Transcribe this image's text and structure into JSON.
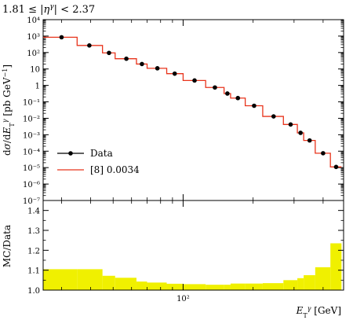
{
  "chart_data": {
    "type": "line",
    "header_label": "1.81 ≤ |η^γ| < 2.37",
    "main": {
      "ylabel": "dσ/dE_T^γ [pb GeV⁻¹]",
      "yscale": "log",
      "ylim": [
        1e-07,
        10000.0
      ],
      "y_ticks": [
        {
          "label": "10⁴",
          "v": 10000.0
        },
        {
          "label": "10³",
          "v": 1000.0
        },
        {
          "label": "10²",
          "v": 100.0
        },
        {
          "label": "10",
          "v": 10
        },
        {
          "label": "1",
          "v": 1
        },
        {
          "label": "10⁻¹",
          "v": 0.1
        },
        {
          "label": "10⁻²",
          "v": 0.01
        },
        {
          "label": "10⁻³",
          "v": 0.001
        },
        {
          "label": "10⁻⁴",
          "v": 0.0001
        },
        {
          "label": "10⁻⁵",
          "v": 1e-05
        },
        {
          "label": "10⁻⁶",
          "v": 1e-06
        },
        {
          "label": "10⁻⁷",
          "v": 1e-07
        }
      ],
      "legend_position": "bottom-left",
      "series": [
        {
          "name": "Data",
          "style": "points",
          "color": "#000000",
          "x": [
            30,
            39.5,
            48,
            57,
            66.5,
            77.5,
            92,
            112,
            137,
            155,
            172,
            202,
            245,
            290,
            320,
            350,
            400,
            455
          ],
          "y": [
            850,
            270,
            95,
            42,
            20,
            11,
            5.2,
            2.0,
            0.75,
            0.32,
            0.17,
            0.058,
            0.013,
            0.0042,
            0.0013,
            0.00045,
            7.5e-05,
            1.1e-05
          ]
        },
        {
          "name": "[8] 0.0034",
          "style": "step",
          "color": "#e8341c",
          "edges": [
            25,
            35,
            45,
            51,
            63,
            70,
            85,
            100,
            125,
            150,
            160,
            185,
            220,
            270,
            310,
            330,
            370,
            430,
            480
          ],
          "values": [
            850,
            270,
            95,
            42,
            20,
            11,
            5.2,
            2.0,
            0.75,
            0.32,
            0.17,
            0.058,
            0.013,
            0.0042,
            0.0013,
            0.00045,
            7.5e-05,
            1.1e-05
          ]
        }
      ]
    },
    "ratio": {
      "ylabel": "MC/Data",
      "ylim": [
        1.0,
        1.45
      ],
      "y_ticks": [
        {
          "label": "1.0",
          "v": 1.0
        },
        {
          "label": "1.1",
          "v": 1.1
        },
        {
          "label": "1.2",
          "v": 1.2
        },
        {
          "label": "1.3",
          "v": 1.3
        },
        {
          "label": "1.4",
          "v": 1.4
        }
      ],
      "band_color": "#f0f000",
      "band": {
        "edges": [
          25,
          35,
          45,
          51,
          63,
          70,
          85,
          100,
          125,
          150,
          160,
          185,
          220,
          270,
          310,
          330,
          370,
          430,
          480
        ],
        "upper": [
          1.105,
          1.105,
          1.072,
          1.062,
          1.043,
          1.038,
          1.032,
          1.03,
          1.027,
          1.027,
          1.033,
          1.033,
          1.035,
          1.05,
          1.06,
          1.075,
          1.115,
          1.235
        ]
      }
    },
    "x": {
      "label": "E_T^γ [GeV]",
      "scale": "log",
      "lim": [
        25,
        490
      ],
      "tick_labels": [
        {
          "label": "10²",
          "v": 100
        }
      ]
    }
  }
}
